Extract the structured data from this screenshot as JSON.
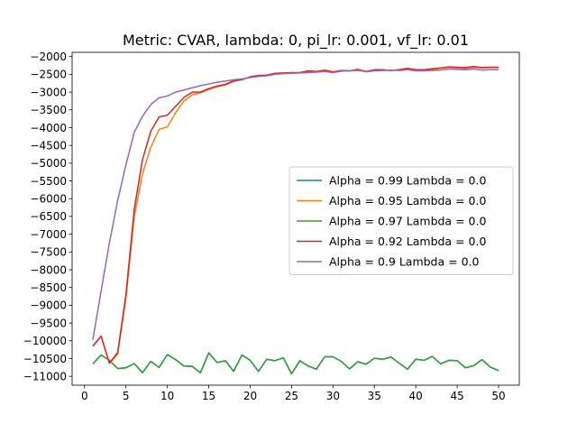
{
  "chart_data": {
    "type": "line",
    "title": "Metric: CVAR, lambda: 0, pi_lr: 0.001, vf_lr: 0.01",
    "xlabel": "",
    "ylabel": "",
    "xlim": [
      -1.5,
      52.5
    ],
    "ylim": [
      -11250,
      -1880
    ],
    "x_ticks": [
      0,
      5,
      10,
      15,
      20,
      25,
      30,
      35,
      40,
      45,
      50
    ],
    "y_ticks": [
      -11000,
      -10500,
      -10000,
      -9500,
      -9000,
      -8500,
      -8000,
      -7500,
      -7000,
      -6500,
      -6000,
      -5500,
      -5000,
      -4500,
      -4000,
      -3500,
      -3000,
      -2500,
      -2000
    ],
    "grid": false,
    "legend_position": "center-right",
    "x": [
      1,
      2,
      3,
      4,
      5,
      6,
      7,
      8,
      9,
      10,
      11,
      12,
      13,
      14,
      15,
      16,
      17,
      18,
      19,
      20,
      21,
      22,
      23,
      24,
      25,
      26,
      27,
      28,
      29,
      30,
      31,
      32,
      33,
      34,
      35,
      36,
      37,
      38,
      39,
      40,
      41,
      42,
      43,
      44,
      45,
      46,
      47,
      48,
      49,
      50
    ],
    "series": [
      {
        "name": "Alpha = 0.99  Lambda = 0.0",
        "color": "#1f77b4",
        "values": [
          -10650,
          -10400,
          -10550,
          -10780,
          -10760,
          -10640,
          -10900,
          -10580,
          -10750,
          -10390,
          -10530,
          -10710,
          -10720,
          -10900,
          -10340,
          -10610,
          -10560,
          -10860,
          -10400,
          -10550,
          -10860,
          -10520,
          -10560,
          -10480,
          -10930,
          -10560,
          -10710,
          -10800,
          -10450,
          -10450,
          -10580,
          -10790,
          -10590,
          -10660,
          -10490,
          -10520,
          -10460,
          -10630,
          -10800,
          -10520,
          -10550,
          -10440,
          -10650,
          -10550,
          -10560,
          -10760,
          -10700,
          -10530,
          -10740,
          -10840
        ]
      },
      {
        "name": "Alpha = 0.95  Lambda = 0.0",
        "color": "#ff7f0e",
        "values": [
          -10150,
          -9870,
          -10630,
          -10380,
          -8800,
          -6500,
          -5300,
          -4550,
          -4050,
          -3980,
          -3580,
          -3250,
          -3080,
          -3020,
          -2930,
          -2850,
          -2800,
          -2700,
          -2650,
          -2580,
          -2550,
          -2520,
          -2480,
          -2470,
          -2460,
          -2450,
          -2420,
          -2430,
          -2400,
          -2440,
          -2410,
          -2400,
          -2390,
          -2420,
          -2380,
          -2380,
          -2390,
          -2370,
          -2340,
          -2380,
          -2370,
          -2360,
          -2330,
          -2300,
          -2320,
          -2330,
          -2300,
          -2320,
          -2310,
          -2310
        ]
      },
      {
        "name": "Alpha = 0.97  Lambda = 0.0",
        "color": "#2ca02c",
        "values": [
          -10650,
          -10400,
          -10550,
          -10780,
          -10760,
          -10640,
          -10900,
          -10580,
          -10750,
          -10390,
          -10530,
          -10710,
          -10720,
          -10900,
          -10340,
          -10610,
          -10560,
          -10860,
          -10400,
          -10550,
          -10860,
          -10520,
          -10560,
          -10480,
          -10930,
          -10560,
          -10710,
          -10800,
          -10450,
          -10450,
          -10580,
          -10790,
          -10590,
          -10660,
          -10490,
          -10520,
          -10460,
          -10630,
          -10800,
          -10520,
          -10550,
          -10440,
          -10650,
          -10550,
          -10560,
          -10760,
          -10700,
          -10530,
          -10740,
          -10840
        ]
      },
      {
        "name": "Alpha = 0.92  Lambda = 0.0",
        "color": "#d62728",
        "values": [
          -10150,
          -9870,
          -10630,
          -10330,
          -8700,
          -6300,
          -4900,
          -4100,
          -3700,
          -3650,
          -3400,
          -3150,
          -3000,
          -3000,
          -2900,
          -2830,
          -2780,
          -2680,
          -2650,
          -2570,
          -2530,
          -2520,
          -2470,
          -2460,
          -2450,
          -2450,
          -2400,
          -2420,
          -2380,
          -2430,
          -2390,
          -2400,
          -2360,
          -2420,
          -2370,
          -2370,
          -2390,
          -2370,
          -2330,
          -2370,
          -2370,
          -2340,
          -2320,
          -2290,
          -2300,
          -2310,
          -2280,
          -2310,
          -2300,
          -2300
        ]
      },
      {
        "name": "Alpha = 0.9  Lambda = 0.0",
        "color": "#9467bd",
        "values": [
          -9970,
          -8600,
          -7250,
          -6050,
          -5050,
          -4130,
          -3680,
          -3350,
          -3160,
          -3110,
          -3000,
          -2940,
          -2880,
          -2820,
          -2770,
          -2720,
          -2690,
          -2650,
          -2630,
          -2590,
          -2560,
          -2540,
          -2500,
          -2480,
          -2470,
          -2460,
          -2450,
          -2440,
          -2420,
          -2450,
          -2410,
          -2400,
          -2380,
          -2430,
          -2400,
          -2390,
          -2380,
          -2390,
          -2370,
          -2400,
          -2400,
          -2390,
          -2380,
          -2350,
          -2360,
          -2370,
          -2350,
          -2380,
          -2370,
          -2370
        ]
      }
    ]
  }
}
